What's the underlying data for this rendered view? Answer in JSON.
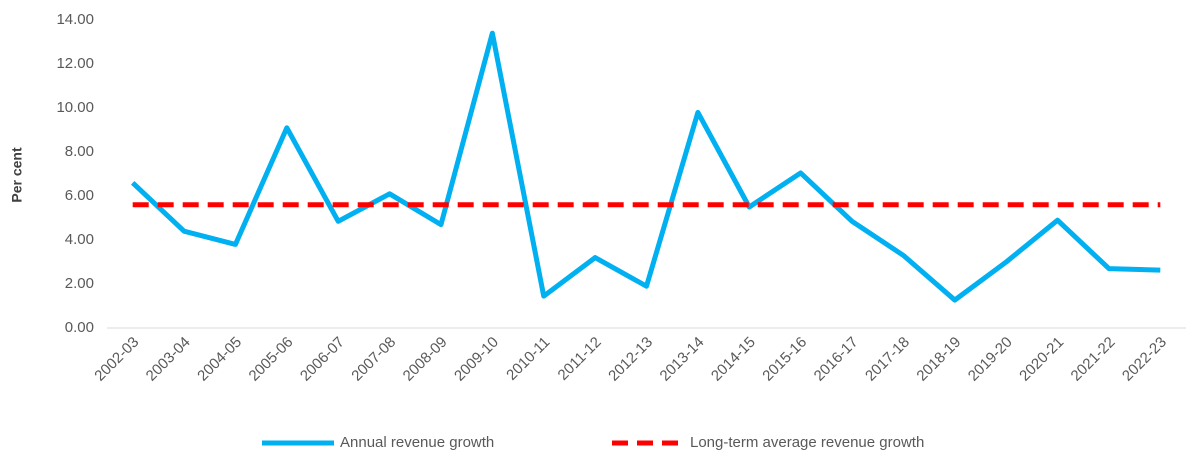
{
  "chart_data": {
    "type": "line",
    "ylabel": "Per cent",
    "categories": [
      "2002-03",
      "2003-04",
      "2004-05",
      "2005-06",
      "2006-07",
      "2007-08",
      "2008-09",
      "2009-10",
      "2010-11",
      "2011-12",
      "2012-13",
      "2013-14",
      "2014-15",
      "2015-16",
      "2016-17",
      "2017-18",
      "2018-19",
      "2019-20",
      "2020-21",
      "2021-22",
      "2022-23"
    ],
    "series": [
      {
        "name": "Annual revenue growth",
        "color": "#00b0f0",
        "dash": false,
        "values": [
          6.6,
          4.4,
          3.8,
          9.1,
          4.85,
          6.1,
          4.7,
          13.4,
          1.45,
          3.2,
          1.9,
          9.8,
          5.5,
          7.05,
          4.85,
          3.3,
          1.27,
          3.0,
          4.9,
          2.7,
          2.63
        ]
      },
      {
        "name": "Long-term average revenue growth",
        "color": "#ff0000",
        "dash": true,
        "values": [
          5.6,
          5.6,
          5.6,
          5.6,
          5.6,
          5.6,
          5.6,
          5.6,
          5.6,
          5.6,
          5.6,
          5.6,
          5.6,
          5.6,
          5.6,
          5.6,
          5.6,
          5.6,
          5.6,
          5.6,
          5.6
        ]
      }
    ],
    "ylim": [
      0,
      14
    ],
    "yticks": [
      {
        "value": 0,
        "label": "0.00"
      },
      {
        "value": 2,
        "label": "2.00"
      },
      {
        "value": 4,
        "label": "4.00"
      },
      {
        "value": 6,
        "label": "6.00"
      },
      {
        "value": 8,
        "label": "8.00"
      },
      {
        "value": 10,
        "label": "10.00"
      },
      {
        "value": 12,
        "label": "12.00"
      },
      {
        "value": 14,
        "label": "14.00"
      }
    ],
    "grid": false,
    "legend": "bottom"
  }
}
